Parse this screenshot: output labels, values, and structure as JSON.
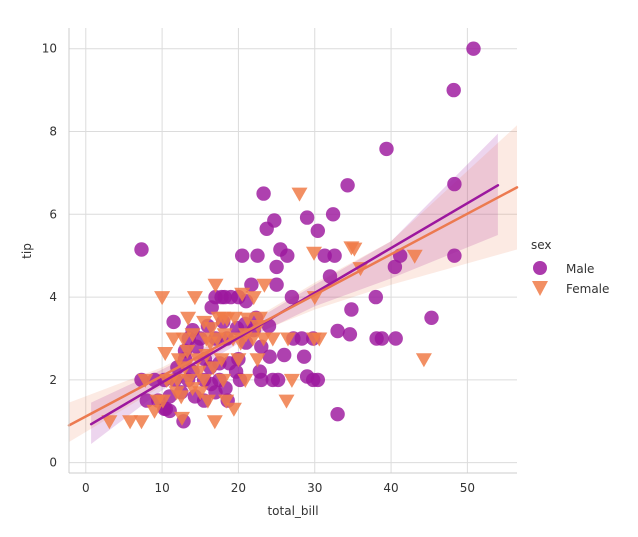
{
  "chart_data": {
    "type": "scatter",
    "xlabel": "total_bill",
    "ylabel": "tip",
    "xlim": [
      -2.2,
      56.5
    ],
    "ylim": [
      -0.25,
      10.5
    ],
    "xticks": [
      0,
      10,
      20,
      30,
      40,
      50
    ],
    "yticks": [
      0,
      2,
      4,
      6,
      8,
      10
    ],
    "grid": true,
    "legend": {
      "title": "sex",
      "placement": "right"
    },
    "series": [
      {
        "name": "Male",
        "marker": "circle",
        "color": "#9c179e",
        "fit_color": "#9c179e",
        "fit_line": [
          [
            0.7,
            0.93
          ],
          [
            54.0,
            6.7
          ]
        ],
        "ci_band": {
          "x": [
            0.7,
            10,
            20,
            30,
            40,
            54.0
          ],
          "lower": [
            0.45,
            1.75,
            2.88,
            3.78,
            4.45,
            5.5
          ],
          "upper": [
            1.45,
            2.25,
            3.2,
            4.3,
            5.35,
            7.95
          ]
        },
        "points": [
          [
            50.8,
            10.0
          ],
          [
            48.2,
            9.0
          ],
          [
            39.4,
            7.58
          ],
          [
            48.3,
            6.73
          ],
          [
            34.3,
            6.7
          ],
          [
            23.3,
            6.5
          ],
          [
            29.0,
            5.92
          ],
          [
            24.7,
            5.85
          ],
          [
            32.4,
            6.0
          ],
          [
            23.7,
            5.65
          ],
          [
            30.4,
            5.6
          ],
          [
            7.3,
            5.15
          ],
          [
            20.5,
            5.0
          ],
          [
            22.5,
            5.0
          ],
          [
            25.5,
            5.15
          ],
          [
            31.3,
            5.0
          ],
          [
            32.6,
            5.0
          ],
          [
            41.2,
            5.0
          ],
          [
            48.3,
            5.0
          ],
          [
            26.4,
            5.0
          ],
          [
            40.5,
            4.73
          ],
          [
            25.0,
            4.73
          ],
          [
            32.0,
            4.5
          ],
          [
            21.7,
            4.3
          ],
          [
            25.0,
            4.3
          ],
          [
            27.0,
            4.0
          ],
          [
            38.0,
            4.0
          ],
          [
            17.0,
            4.0
          ],
          [
            17.8,
            4.0
          ],
          [
            18.2,
            4.0
          ],
          [
            19.0,
            4.0
          ],
          [
            20.0,
            4.0
          ],
          [
            21.0,
            3.9
          ],
          [
            16.5,
            3.75
          ],
          [
            34.8,
            3.7
          ],
          [
            45.3,
            3.5
          ],
          [
            11.5,
            3.4
          ],
          [
            18.0,
            3.4
          ],
          [
            20.9,
            3.35
          ],
          [
            24.0,
            3.3
          ],
          [
            19.8,
            3.25
          ],
          [
            22.0,
            3.2
          ],
          [
            14.0,
            3.2
          ],
          [
            16.0,
            3.3
          ],
          [
            33.0,
            3.18
          ],
          [
            34.6,
            3.1
          ],
          [
            27.2,
            3.0
          ],
          [
            28.3,
            3.0
          ],
          [
            29.8,
            3.0
          ],
          [
            38.1,
            3.0
          ],
          [
            38.8,
            3.0
          ],
          [
            40.6,
            3.0
          ],
          [
            13.5,
            3.0
          ],
          [
            15.0,
            3.0
          ],
          [
            17.0,
            3.0
          ],
          [
            18.5,
            3.0
          ],
          [
            21.0,
            2.9
          ],
          [
            14.5,
            2.8
          ],
          [
            23.0,
            2.8
          ],
          [
            26.0,
            2.6
          ],
          [
            20.0,
            2.5
          ],
          [
            24.1,
            2.56
          ],
          [
            28.6,
            2.56
          ],
          [
            13.0,
            2.5
          ],
          [
            15.6,
            2.5
          ],
          [
            12.0,
            2.3
          ],
          [
            17.5,
            2.4
          ],
          [
            18.8,
            2.4
          ],
          [
            14.0,
            2.2
          ],
          [
            16.3,
            2.3
          ],
          [
            22.8,
            2.2
          ],
          [
            7.3,
            2.0
          ],
          [
            9.0,
            2.0
          ],
          [
            10.3,
            2.0
          ],
          [
            11.7,
            2.0
          ],
          [
            13.4,
            2.0
          ],
          [
            15.5,
            2.0
          ],
          [
            17.5,
            2.0
          ],
          [
            20.2,
            2.0
          ],
          [
            23.0,
            2.0
          ],
          [
            24.5,
            2.0
          ],
          [
            25.2,
            2.0
          ],
          [
            29.8,
            2.0
          ],
          [
            30.4,
            2.0
          ],
          [
            29.0,
            2.08
          ],
          [
            16.4,
            1.9
          ],
          [
            18.3,
            1.8
          ],
          [
            12.5,
            1.7
          ],
          [
            11.0,
            1.6
          ],
          [
            14.3,
            1.6
          ],
          [
            15.5,
            1.5
          ],
          [
            17.0,
            1.7
          ],
          [
            18.6,
            1.5
          ],
          [
            8.0,
            1.5
          ],
          [
            9.5,
            1.5
          ],
          [
            10.3,
            1.3
          ],
          [
            11.0,
            1.25
          ],
          [
            12.8,
            1.0
          ],
          [
            33.0,
            1.17
          ],
          [
            10.5,
            1.3
          ],
          [
            19.7,
            2.2
          ],
          [
            22.3,
            3.5
          ],
          [
            13.0,
            2.7
          ]
        ]
      },
      {
        "name": "Female",
        "marker": "triangle-down",
        "color": "#f07b48",
        "fit_color": "#ec7a50",
        "fit_line": [
          [
            -2.2,
            0.9
          ],
          [
            56.5,
            6.65
          ]
        ],
        "ci_band": {
          "x": [
            -2.2,
            10,
            20,
            30,
            40,
            56.5
          ],
          "lower": [
            0.5,
            1.85,
            2.95,
            3.7,
            4.3,
            5.15
          ],
          "upper": [
            1.45,
            2.3,
            3.25,
            4.35,
            5.35,
            8.15
          ]
        },
        "points": [
          [
            28.0,
            6.5
          ],
          [
            34.8,
            5.2
          ],
          [
            35.2,
            5.17
          ],
          [
            29.9,
            5.07
          ],
          [
            43.1,
            5.0
          ],
          [
            36.0,
            4.7
          ],
          [
            23.4,
            4.3
          ],
          [
            30.0,
            4.0
          ],
          [
            17.0,
            4.3
          ],
          [
            10.0,
            4.0
          ],
          [
            14.3,
            4.0
          ],
          [
            20.5,
            4.08
          ],
          [
            22.0,
            4.0
          ],
          [
            15.5,
            3.4
          ],
          [
            15.8,
            3.0
          ],
          [
            16.5,
            3.25
          ],
          [
            17.4,
            3.5
          ],
          [
            18.0,
            3.5
          ],
          [
            18.5,
            3.48
          ],
          [
            19.5,
            3.5
          ],
          [
            21.2,
            3.48
          ],
          [
            22.8,
            3.5
          ],
          [
            13.4,
            3.5
          ],
          [
            11.5,
            3.0
          ],
          [
            12.8,
            3.0
          ],
          [
            14.0,
            3.1
          ],
          [
            16.3,
            2.9
          ],
          [
            17.2,
            3.0
          ],
          [
            18.2,
            3.1
          ],
          [
            19.3,
            3.0
          ],
          [
            20.3,
            2.9
          ],
          [
            21.9,
            3.0
          ],
          [
            24.5,
            3.0
          ],
          [
            26.5,
            3.0
          ],
          [
            29.9,
            3.0
          ],
          [
            30.6,
            3.0
          ],
          [
            13.3,
            2.7
          ],
          [
            10.4,
            2.65
          ],
          [
            14.7,
            2.5
          ],
          [
            15.8,
            2.6
          ],
          [
            17.8,
            2.5
          ],
          [
            20.0,
            2.5
          ],
          [
            22.5,
            2.5
          ],
          [
            44.3,
            2.5
          ],
          [
            12.2,
            2.5
          ],
          [
            13.0,
            2.3
          ],
          [
            14.8,
            2.2
          ],
          [
            15.5,
            2.0
          ],
          [
            16.7,
            2.3
          ],
          [
            18.0,
            2.0
          ],
          [
            11.2,
            2.0
          ],
          [
            12.0,
            2.0
          ],
          [
            7.8,
            2.0
          ],
          [
            10.6,
            2.0
          ],
          [
            14.0,
            1.8
          ],
          [
            15.0,
            1.7
          ],
          [
            18.4,
            1.5
          ],
          [
            9.4,
            1.5
          ],
          [
            10.1,
            1.5
          ],
          [
            12.5,
            1.6
          ],
          [
            26.3,
            1.5
          ],
          [
            27.0,
            2.0
          ],
          [
            3.1,
            1.0
          ],
          [
            5.8,
            1.0
          ],
          [
            7.3,
            1.0
          ],
          [
            9.0,
            1.25
          ],
          [
            12.6,
            1.08
          ],
          [
            16.9,
            1.0
          ],
          [
            13.5,
            2.0
          ],
          [
            16.0,
            1.5
          ],
          [
            19.4,
            1.3
          ],
          [
            21.0,
            3.1
          ],
          [
            22.6,
            3.3
          ],
          [
            23.3,
            3.0
          ],
          [
            20.9,
            2.0
          ],
          [
            11.9,
            1.7
          ]
        ]
      }
    ]
  }
}
